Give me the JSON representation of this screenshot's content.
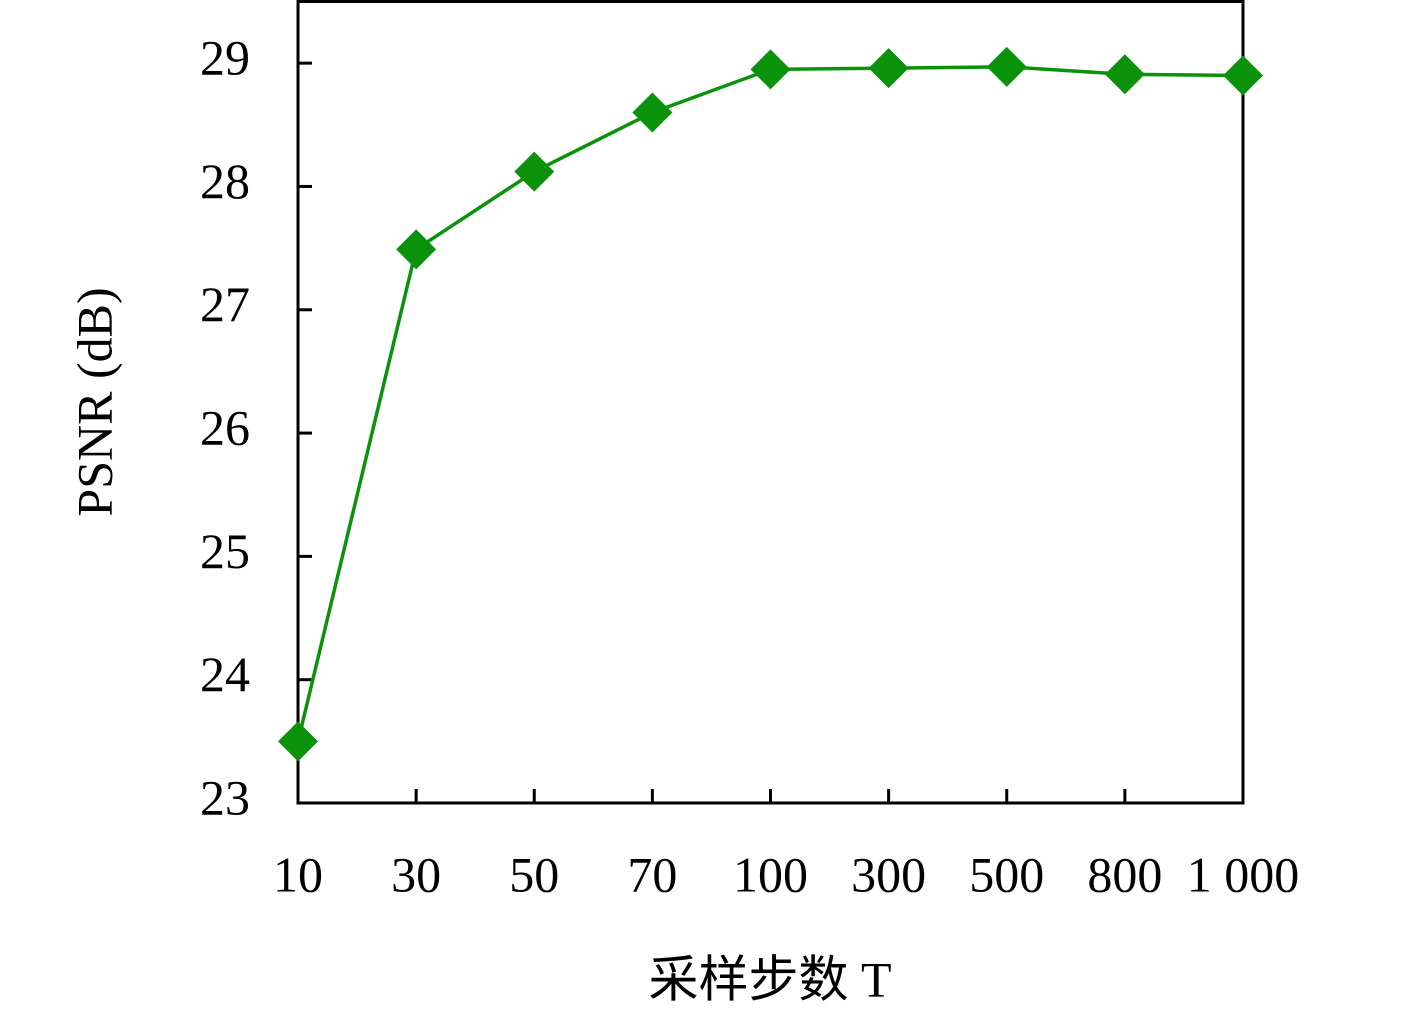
{
  "chart_data": {
    "type": "line",
    "x_label": "采样步数 T",
    "y_label": "PSNR (dB)",
    "categories": [
      "10",
      "30",
      "50",
      "70",
      "100",
      "300",
      "500",
      "800",
      "1 000"
    ],
    "series": [
      {
        "color": "#0a930a",
        "marker": "diamond",
        "values": [
          23.5,
          27.49,
          28.12,
          28.6,
          28.95,
          28.96,
          28.97,
          28.91,
          28.9
        ]
      }
    ],
    "ylim": [
      23,
      29.5
    ],
    "yticks": [
      23,
      24,
      25,
      26,
      27,
      28,
      29
    ]
  }
}
